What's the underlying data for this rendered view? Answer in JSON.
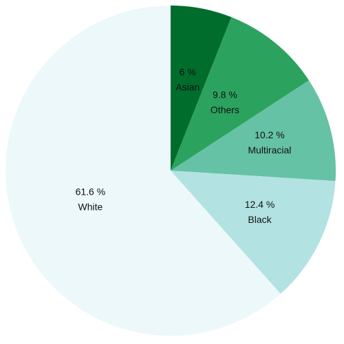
{
  "chart_data": {
    "type": "pie",
    "title": "",
    "slices": [
      {
        "label": "Asian",
        "value": 6,
        "value_label": "6 %",
        "color": "#006d2c"
      },
      {
        "label": "Others",
        "value": 9.8,
        "value_label": "9.8 %",
        "color": "#2ca25f"
      },
      {
        "label": "Multiracial",
        "value": 10.2,
        "value_label": "10.2 %",
        "color": "#66c2a4"
      },
      {
        "label": "Black",
        "value": 12.4,
        "value_label": "12.4 %",
        "color": "#b2e2e2"
      },
      {
        "label": "White",
        "value": 61.6,
        "value_label": "61.6 %",
        "color": "#edf8fb"
      }
    ],
    "start_angle": "top",
    "direction": "clockwise",
    "legend": "none"
  }
}
